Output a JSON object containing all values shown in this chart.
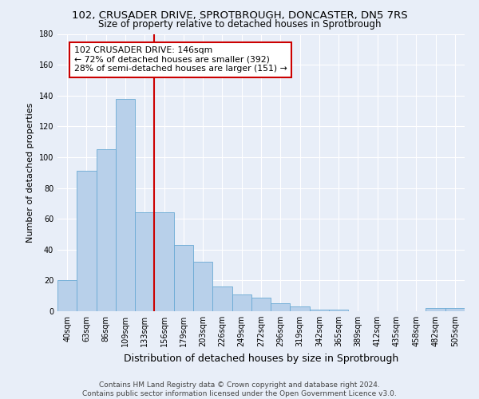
{
  "title": "102, CRUSADER DRIVE, SPROTBROUGH, DONCASTER, DN5 7RS",
  "subtitle": "Size of property relative to detached houses in Sprotbrough",
  "xlabel": "Distribution of detached houses by size in Sprotbrough",
  "ylabel": "Number of detached properties",
  "footer_line1": "Contains HM Land Registry data © Crown copyright and database right 2024.",
  "footer_line2": "Contains public sector information licensed under the Open Government Licence v3.0.",
  "bar_labels": [
    "40sqm",
    "63sqm",
    "86sqm",
    "109sqm",
    "133sqm",
    "156sqm",
    "179sqm",
    "203sqm",
    "226sqm",
    "249sqm",
    "272sqm",
    "296sqm",
    "319sqm",
    "342sqm",
    "365sqm",
    "389sqm",
    "412sqm",
    "435sqm",
    "458sqm",
    "482sqm",
    "505sqm"
  ],
  "bar_values": [
    20,
    91,
    105,
    138,
    64,
    64,
    43,
    32,
    16,
    11,
    9,
    5,
    3,
    1,
    1,
    0,
    0,
    0,
    0,
    2,
    2
  ],
  "bar_color": "#b8d0ea",
  "bar_edge_color": "#6aaad4",
  "annotation_title": "102 CRUSADER DRIVE: 146sqm",
  "annotation_line1": "← 72% of detached houses are smaller (392)",
  "annotation_line2": "28% of semi-detached houses are larger (151) →",
  "vline_x": 4.5,
  "annotation_box_color": "#ffffff",
  "annotation_box_edge_color": "#cc0000",
  "vline_color": "#cc0000",
  "ylim": [
    0,
    180
  ],
  "yticks": [
    0,
    20,
    40,
    60,
    80,
    100,
    120,
    140,
    160,
    180
  ],
  "bg_color": "#e8eef8",
  "plot_bg_color": "#e8eef8",
  "grid_color": "#ffffff",
  "title_fontsize": 9.5,
  "subtitle_fontsize": 8.5,
  "ylabel_fontsize": 8,
  "xlabel_fontsize": 9,
  "tick_fontsize": 7,
  "annotation_fontsize": 7.8,
  "footer_fontsize": 6.5
}
